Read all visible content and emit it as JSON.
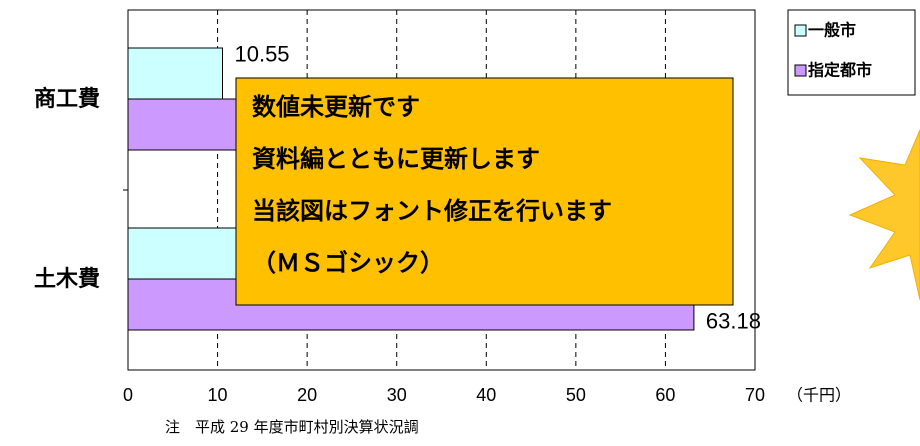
{
  "chart_data": {
    "type": "bar",
    "orientation": "horizontal",
    "categories": [
      "商工費",
      "土木費"
    ],
    "series": [
      {
        "name": "一般市",
        "color": "#ccffff",
        "values": [
          10.55,
          40
        ]
      },
      {
        "name": "指定都市",
        "color": "#cc99ff",
        "values": [
          20,
          63.18
        ]
      }
    ],
    "xlim": [
      0,
      70
    ],
    "xticks": [
      0,
      10,
      20,
      30,
      40,
      50,
      60,
      70
    ],
    "x_label": "（千円）",
    "grid": true,
    "legend": "top-right",
    "note": "注　平成 29 年度市町村別決算状況調",
    "annotation": {
      "lines": [
        "数値未更新です",
        "資料編とともに更新します",
        "当該図はフォント修正を行います",
        "（ＭＳゴシック）"
      ]
    }
  }
}
